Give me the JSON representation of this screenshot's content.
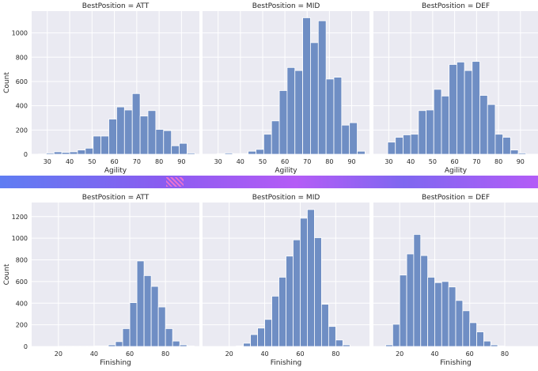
{
  "chart_data": [
    {
      "type": "bar",
      "title": "BestPosition = ATT",
      "xlabel": "Agility",
      "ylabel": "Count",
      "xlim": [
        23,
        98
      ],
      "ylim": [
        0,
        1180
      ],
      "xticks": [
        30,
        40,
        50,
        60,
        70,
        80,
        90
      ],
      "yticks": [
        0,
        200,
        400,
        600,
        800,
        1000
      ],
      "bin_width": 3.5,
      "bins_start": [
        26,
        29.5,
        33,
        36.5,
        40,
        43.5,
        47,
        50.5,
        54,
        57.5,
        61,
        64.5,
        68,
        71.5,
        75,
        78.5,
        82,
        85.5,
        89,
        92.5
      ],
      "values": [
        2,
        10,
        20,
        15,
        20,
        35,
        50,
        150,
        150,
        290,
        390,
        365,
        500,
        315,
        360,
        205,
        195,
        70,
        90,
        10
      ]
    },
    {
      "type": "bar",
      "title": "BestPosition = MID",
      "xlabel": "Agility",
      "ylabel": "",
      "xlim": [
        23,
        98
      ],
      "ylim": [
        0,
        1180
      ],
      "xticks": [
        30,
        40,
        50,
        60,
        70,
        80,
        90
      ],
      "yticks": [],
      "bin_width": 3.5,
      "bins_start": [
        26,
        29.5,
        33,
        36.5,
        40,
        43.5,
        47,
        50.5,
        54,
        57.5,
        61,
        64.5,
        68,
        71.5,
        75,
        78.5,
        82,
        85.5,
        89,
        92.5
      ],
      "values": [
        0,
        5,
        10,
        5,
        5,
        25,
        40,
        165,
        275,
        525,
        715,
        690,
        1125,
        920,
        1100,
        620,
        635,
        240,
        260,
        25
      ]
    },
    {
      "type": "bar",
      "title": "BestPosition = DEF",
      "xlabel": "Agility",
      "ylabel": "",
      "xlim": [
        23,
        98
      ],
      "ylim": [
        0,
        1180
      ],
      "xticks": [
        30,
        40,
        50,
        60,
        70,
        80,
        90
      ],
      "yticks": [],
      "bin_width": 3.5,
      "bins_start": [
        26,
        29.5,
        33,
        36.5,
        40,
        43.5,
        47,
        50.5,
        54,
        57.5,
        61,
        64.5,
        68,
        71.5,
        75,
        78.5,
        82,
        85.5,
        89,
        92.5
      ],
      "values": [
        0,
        100,
        140,
        160,
        165,
        360,
        365,
        535,
        480,
        740,
        760,
        690,
        765,
        485,
        410,
        165,
        140,
        35,
        10,
        0
      ]
    },
    {
      "type": "bar",
      "title": "BestPosition = ATT",
      "xlabel": "Finishing",
      "ylabel": "Count",
      "xlim": [
        5,
        99
      ],
      "ylim": [
        0,
        1330
      ],
      "xticks": [
        20,
        40,
        60,
        80
      ],
      "yticks": [
        0,
        200,
        400,
        600,
        800,
        1000,
        1200
      ],
      "bin_width": 4,
      "bins_start": [
        12,
        16,
        20,
        24,
        28,
        32,
        36,
        40,
        44,
        48,
        52,
        56,
        60,
        64,
        68,
        72,
        76,
        80,
        84,
        88,
        92
      ],
      "values": [
        0,
        0,
        2,
        2,
        2,
        2,
        2,
        5,
        5,
        15,
        45,
        165,
        405,
        790,
        655,
        555,
        365,
        165,
        50,
        15,
        5
      ]
    },
    {
      "type": "bar",
      "title": "BestPosition = MID",
      "xlabel": "Finishing",
      "ylabel": "",
      "xlim": [
        5,
        99
      ],
      "ylim": [
        0,
        1330
      ],
      "xticks": [
        20,
        40,
        60,
        80
      ],
      "yticks": [],
      "bin_width": 4,
      "bins_start": [
        12,
        16,
        20,
        24,
        28,
        32,
        36,
        40,
        44,
        48,
        52,
        56,
        60,
        64,
        68,
        72,
        76,
        80,
        84,
        88,
        92
      ],
      "values": [
        0,
        0,
        0,
        5,
        30,
        110,
        170,
        250,
        465,
        640,
        835,
        985,
        1185,
        1265,
        1005,
        390,
        185,
        60,
        15,
        0,
        0
      ]
    },
    {
      "type": "bar",
      "title": "BestPosition = DEF",
      "xlabel": "Finishing",
      "ylabel": "",
      "xlim": [
        5,
        99
      ],
      "ylim": [
        0,
        1330
      ],
      "xticks": [
        20,
        40,
        60,
        80
      ],
      "yticks": [],
      "bin_width": 4,
      "bins_start": [
        12,
        16,
        20,
        24,
        28,
        32,
        36,
        40,
        44,
        48,
        52,
        56,
        60,
        64,
        68,
        72,
        76,
        80,
        84,
        88,
        92
      ],
      "values": [
        15,
        205,
        660,
        855,
        1035,
        840,
        640,
        590,
        600,
        550,
        425,
        330,
        220,
        135,
        50,
        15,
        5,
        0,
        0,
        0,
        0
      ]
    }
  ],
  "colors": {
    "bar_fill": "#6f8ec4",
    "bar_edge": "#ffffff",
    "panel_bg": "#eaeaf2",
    "grid": "#ffffff",
    "text": "#262626"
  }
}
